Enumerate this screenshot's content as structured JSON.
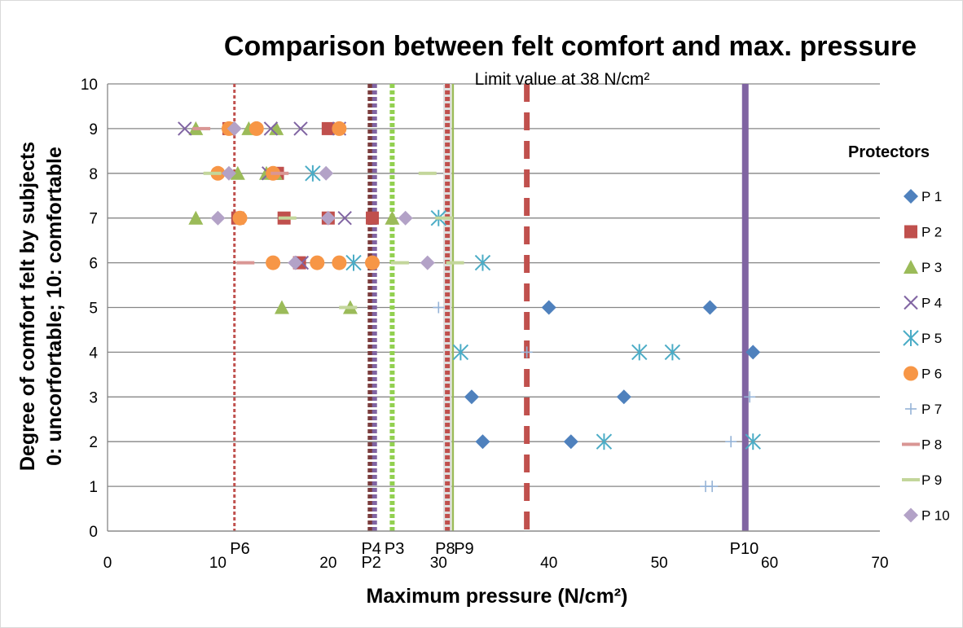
{
  "chart_data": {
    "type": "scatter",
    "title": "Comparison between felt comfort and max. pressure",
    "xlabel": "Maximum pressure (N/cm²)",
    "ylabel": [
      "Degree of comfort felt by subjects",
      "0: uncorfortable; 10: comfortable"
    ],
    "xlim": [
      0,
      70
    ],
    "ylim": [
      0,
      10
    ],
    "x_ticks": [
      0,
      10,
      20,
      30,
      40,
      50,
      60,
      70
    ],
    "y_ticks": [
      0,
      1,
      2,
      3,
      4,
      5,
      6,
      7,
      8,
      9,
      10
    ],
    "grid": "horizontal",
    "legend_title": "Protectors",
    "legend_position": "right",
    "annotation": "Limit value at 38 N/cm²",
    "reference_lines": [
      {
        "name": "P6",
        "x": 11.5,
        "color": "#c0504d",
        "style": "dotted-thin"
      },
      {
        "name": "P4",
        "x": 23.8,
        "color": "#7a3b3b",
        "style": "dotted-thick"
      },
      {
        "name": "P2",
        "x": 24.2,
        "color": "#8064a2",
        "style": "dotted-thick"
      },
      {
        "name": "P3",
        "x": 25.8,
        "color": "#92d050",
        "style": "dotted-thick"
      },
      {
        "name": "P8",
        "x": 30.8,
        "color": "#c0504d",
        "style": "dotted-thick"
      },
      {
        "name": "P9",
        "x": 31.3,
        "color": "#9bbb59",
        "style": "solid-thin"
      },
      {
        "name": "Limit",
        "x": 38,
        "color": "#c0504d",
        "style": "dashed"
      },
      {
        "name": "P10",
        "x": 57.8,
        "color": "#8064a2",
        "style": "solid-thick"
      }
    ],
    "reference_line_labels": [
      {
        "text": "P6",
        "x": 12
      },
      {
        "text": "P4",
        "x": 23.9
      },
      {
        "text": "P2",
        "x": 23.9
      },
      {
        "text": "P3",
        "x": 26
      },
      {
        "text": "P8",
        "x": 30.6
      },
      {
        "text": "P9",
        "x": 32.3
      },
      {
        "text": "P10",
        "x": 57.7
      }
    ],
    "series": [
      {
        "name": "P 1",
        "marker": "diamond",
        "color": "#4f81bd",
        "points": [
          [
            40,
            5
          ],
          [
            54.6,
            5
          ],
          [
            58.5,
            4
          ],
          [
            33,
            3
          ],
          [
            46.8,
            3
          ],
          [
            34,
            2
          ],
          [
            42,
            2
          ]
        ]
      },
      {
        "name": "P 2",
        "marker": "square",
        "color": "#c0504d",
        "points": [
          [
            11,
            9
          ],
          [
            20,
            9
          ],
          [
            11.8,
            7
          ],
          [
            16,
            7
          ],
          [
            20,
            7
          ],
          [
            24,
            7
          ],
          [
            17.4,
            6
          ],
          [
            15.4,
            8
          ]
        ]
      },
      {
        "name": "P 3",
        "marker": "triangle",
        "color": "#9bbb59",
        "points": [
          [
            8,
            9
          ],
          [
            12.8,
            9
          ],
          [
            15.3,
            9
          ],
          [
            14.4,
            8
          ],
          [
            15.2,
            8
          ],
          [
            11.8,
            8
          ],
          [
            8,
            7
          ],
          [
            25.8,
            7
          ],
          [
            15.8,
            5
          ],
          [
            22,
            5
          ]
        ]
      },
      {
        "name": "P 4",
        "marker": "x",
        "color": "#8064a2",
        "points": [
          [
            7,
            9
          ],
          [
            14.8,
            9
          ],
          [
            17.5,
            9
          ],
          [
            21,
            9
          ],
          [
            14.6,
            8
          ],
          [
            21.5,
            7
          ],
          [
            17.6,
            6
          ]
        ]
      },
      {
        "name": "P 5",
        "marker": "asterisk",
        "color": "#4bacc6",
        "points": [
          [
            18.6,
            8
          ],
          [
            30,
            7
          ],
          [
            22.3,
            6
          ],
          [
            34,
            6
          ],
          [
            32,
            4
          ],
          [
            48.2,
            4
          ],
          [
            51.2,
            4
          ],
          [
            45,
            2
          ],
          [
            58.5,
            2
          ]
        ]
      },
      {
        "name": "P 6",
        "marker": "circle",
        "color": "#f79646",
        "points": [
          [
            11,
            9
          ],
          [
            13.5,
            9
          ],
          [
            21,
            9
          ],
          [
            10,
            8
          ],
          [
            15,
            8
          ],
          [
            12,
            7
          ],
          [
            15,
            6
          ],
          [
            19,
            6
          ],
          [
            21,
            6
          ],
          [
            24,
            6
          ]
        ]
      },
      {
        "name": "P 7",
        "marker": "plus",
        "color": "#95b3d7",
        "points": [
          [
            30,
            5
          ],
          [
            38,
            4
          ],
          [
            58.2,
            3
          ],
          [
            56.5,
            2
          ],
          [
            54.2,
            1
          ],
          [
            54.8,
            1
          ]
        ]
      },
      {
        "name": "P 8",
        "marker": "dash",
        "color": "#d99694",
        "points": [
          [
            8.5,
            9
          ],
          [
            12.5,
            6
          ],
          [
            15.6,
            8
          ]
        ]
      },
      {
        "name": "P 9",
        "marker": "dash",
        "color": "#c3d69b",
        "points": [
          [
            9.5,
            8
          ],
          [
            16.3,
            7
          ],
          [
            21.8,
            5
          ],
          [
            26.5,
            6
          ],
          [
            29,
            8
          ],
          [
            30.5,
            7
          ],
          [
            31.5,
            6
          ]
        ]
      },
      {
        "name": "P 10",
        "marker": "diamond",
        "color": "#b3a2c7",
        "points": [
          [
            11.5,
            9
          ],
          [
            11,
            8
          ],
          [
            19.8,
            8
          ],
          [
            10,
            7
          ],
          [
            20,
            7
          ],
          [
            27,
            7
          ],
          [
            17,
            6
          ],
          [
            29,
            6
          ]
        ]
      }
    ]
  }
}
